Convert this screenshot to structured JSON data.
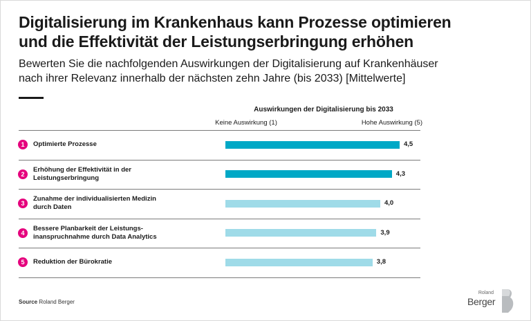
{
  "header": {
    "title_line1": "Digitalisierung im Krankenhaus kann Prozesse optimieren",
    "title_line2": "und die Effektivität der Leistungserbringung erhöhen",
    "subtitle_line1": "Bewerten Sie die nachfolgenden Auswirkungen der Digitalisierung auf Krankenhäuser",
    "subtitle_line2": "nach ihrer Relevanz innerhalb der nächsten zehn Jahre (bis 2033) [Mittelwerte]"
  },
  "chart_data": {
    "type": "bar",
    "orientation": "horizontal",
    "title": "Auswirkungen der Digitalisierung bis 2033",
    "scale_low_label": "Keine Auswirkung (1)",
    "scale_high_label": "Hohe Auswirkung (5)",
    "xlim": [
      0,
      5
    ],
    "grid": false,
    "categories": [
      {
        "num": "1",
        "line1": "Optimierte Prozesse",
        "line2": ""
      },
      {
        "num": "2",
        "line1": "Erhöhung der Effektivität in der",
        "line2": "Leistungserbringung"
      },
      {
        "num": "3",
        "line1": "Zunahme der individualisierten Medizin",
        "line2": "durch Daten"
      },
      {
        "num": "4",
        "line1": "Bessere Planbarkeit der Leistungs-",
        "line2": "inanspruchnahme durch Data Analytics"
      },
      {
        "num": "5",
        "line1": "Reduktion der Bürokratie",
        "line2": ""
      }
    ],
    "values": [
      4.5,
      4.3,
      4.0,
      3.9,
      3.8
    ],
    "value_labels": [
      "4,5",
      "4,3",
      "4,0",
      "3,9",
      "3,8"
    ],
    "bar_colors": [
      "#00a8c6",
      "#00a8c6",
      "#9fdbe8",
      "#9fdbe8",
      "#9fdbe8"
    ],
    "badge_color": "#e5007d"
  },
  "footer": {
    "source_bold": "Source",
    "source_text": "Roland Berger",
    "logo_small": "Roland",
    "logo_big": "Berger"
  }
}
